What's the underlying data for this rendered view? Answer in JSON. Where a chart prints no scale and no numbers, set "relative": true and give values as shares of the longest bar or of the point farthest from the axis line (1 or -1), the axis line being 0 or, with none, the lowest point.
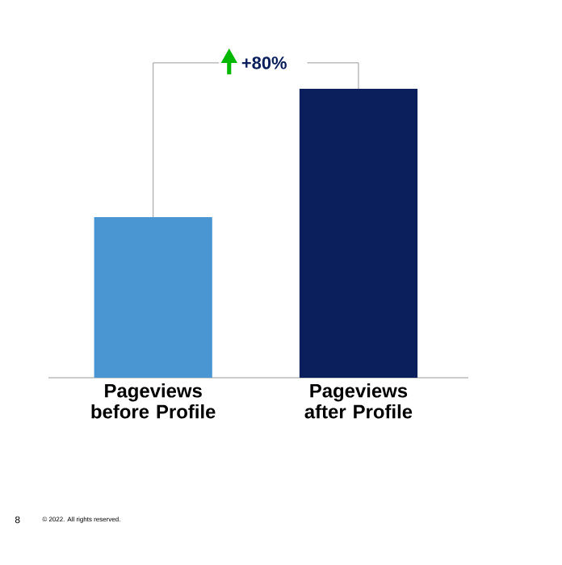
{
  "chart_data": {
    "type": "bar",
    "relative": true,
    "categories": [
      "Pageviews before Profile",
      "Pageviews after Profile"
    ],
    "values": [
      0.556,
      1
    ],
    "colors": [
      "#4a96d2",
      "#0b1f5c"
    ],
    "annotations": [
      "+80%",
      "8",
      "© 2022. All rights reserved."
    ]
  }
}
